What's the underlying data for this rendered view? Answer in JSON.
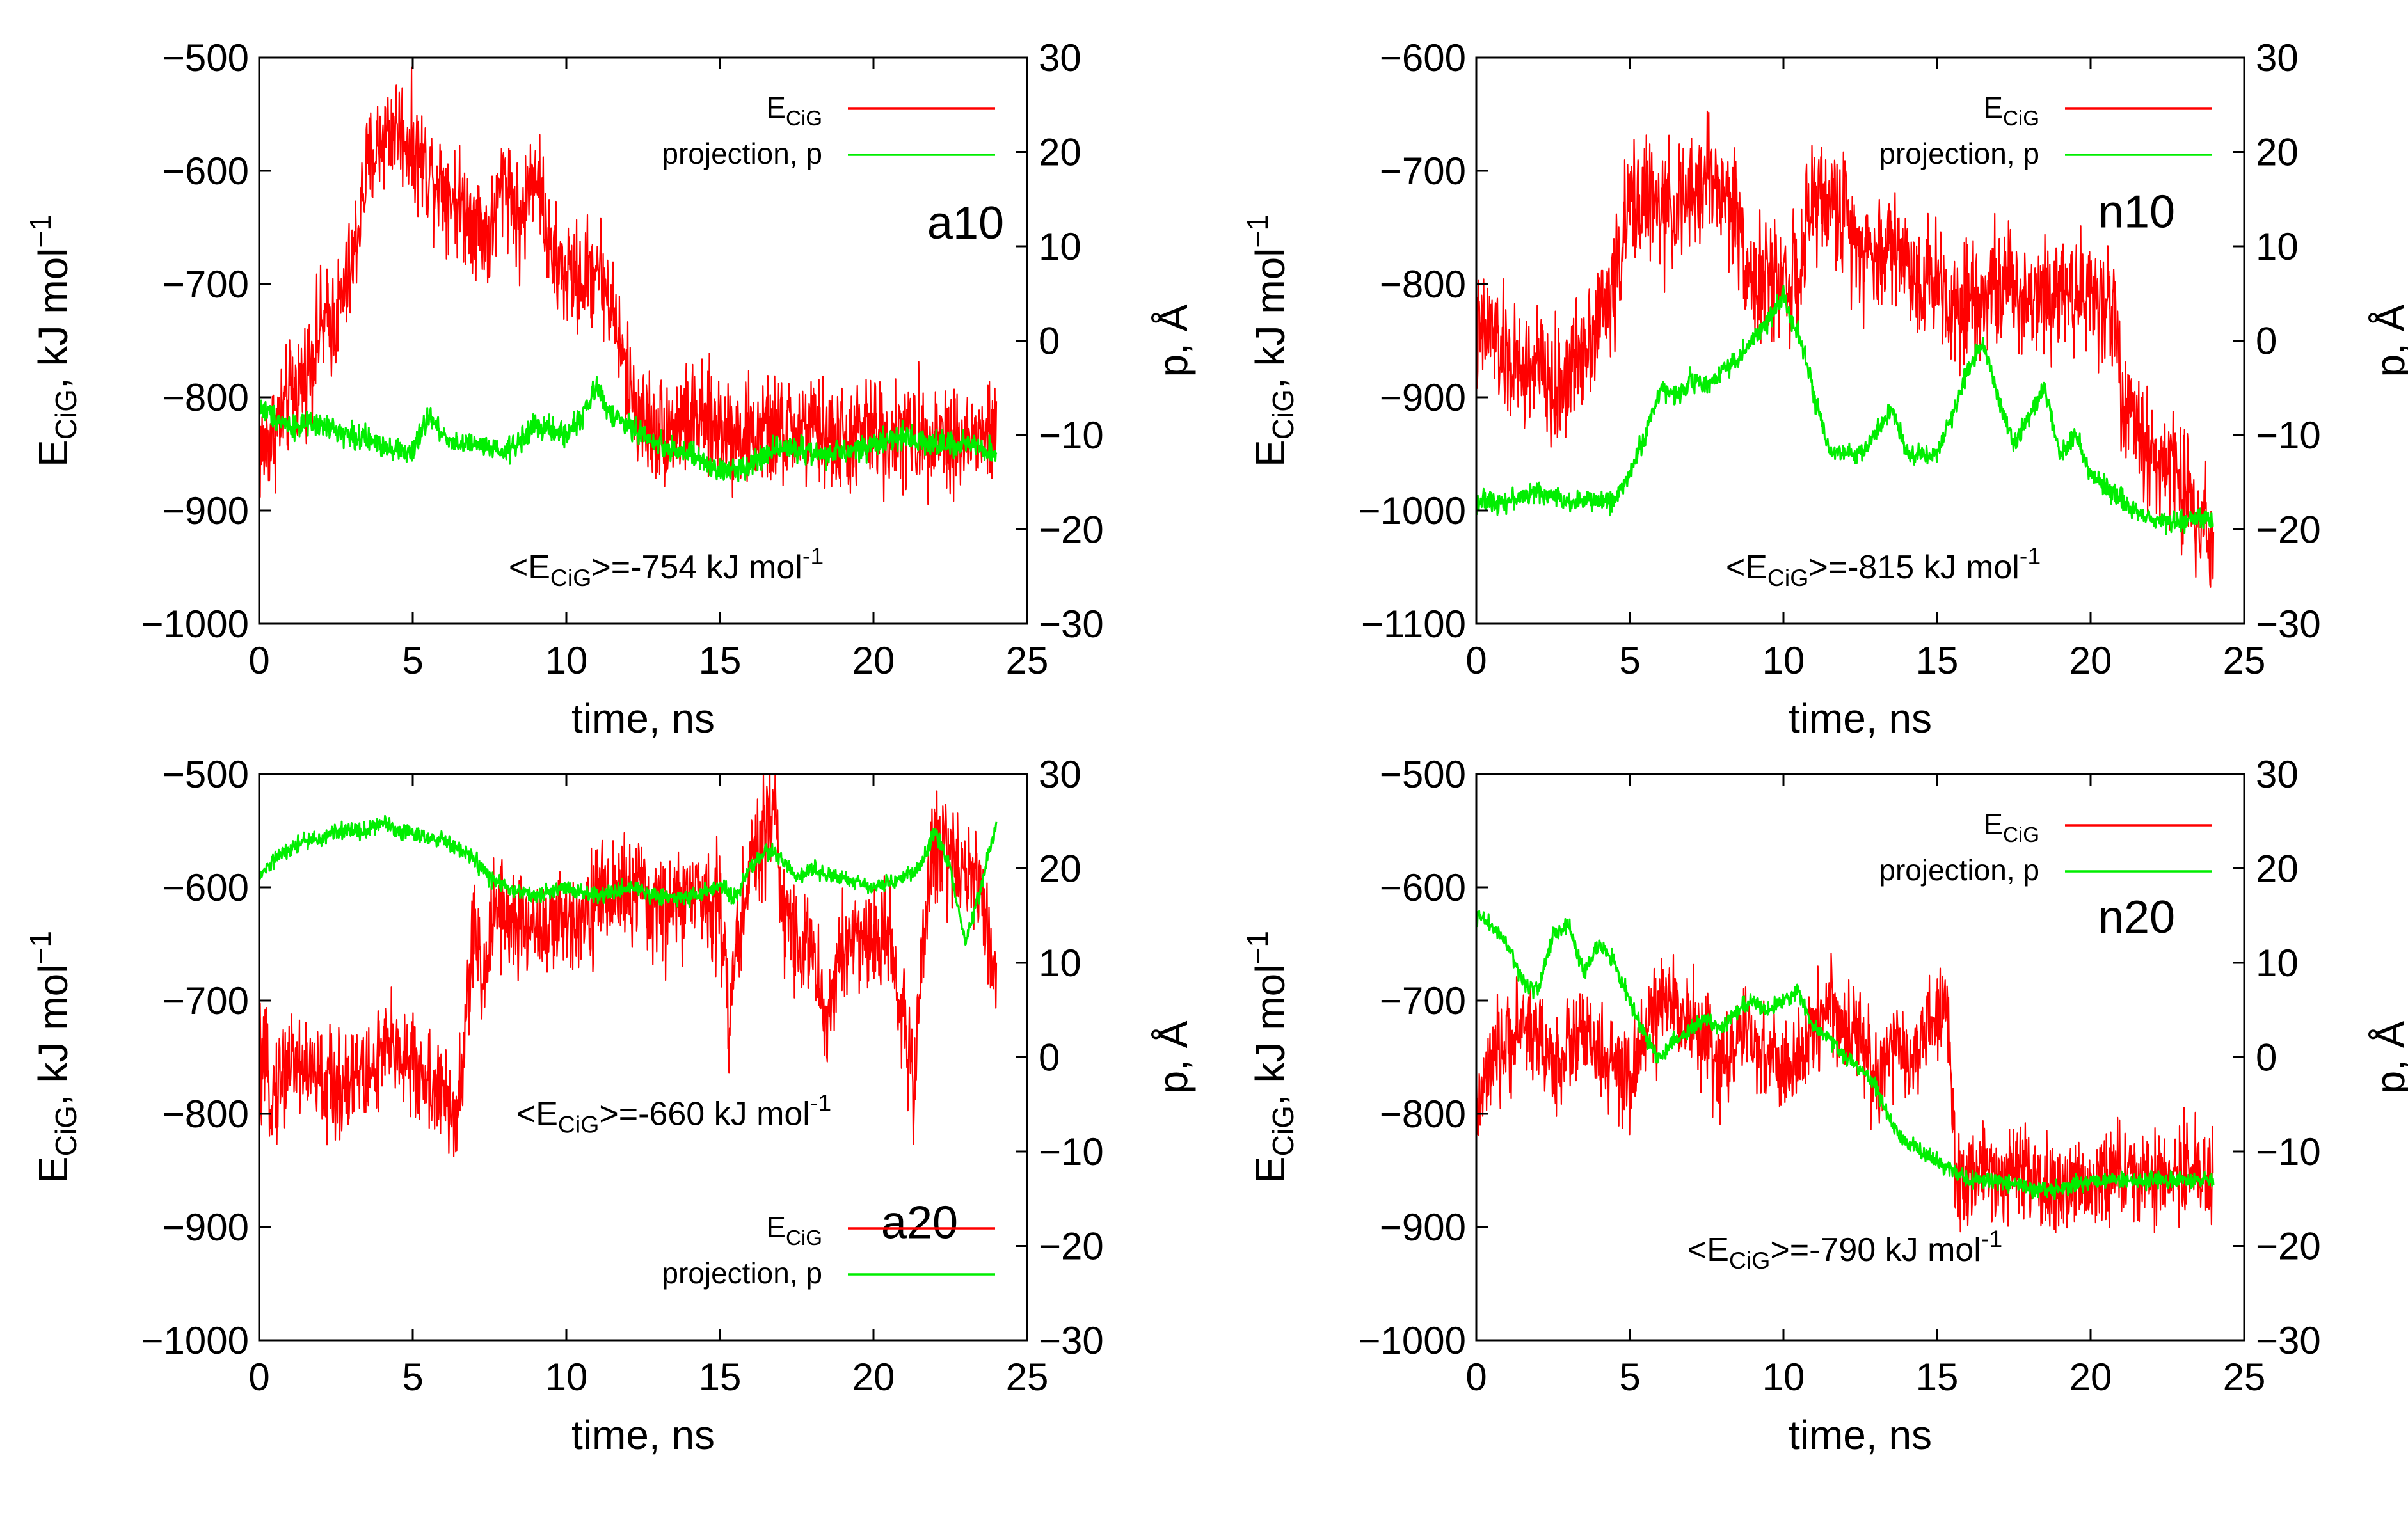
{
  "figure": {
    "description_free": true
  },
  "chart_data": [
    {
      "type": "line",
      "panel": "a10",
      "xlabel": "time, ns",
      "ylabel_left": [
        "E",
        "CiG",
        ", kJ mol",
        "−1"
      ],
      "ylabel_right": "p, Å",
      "xlim": [
        0,
        25
      ],
      "ylim_left": [
        -1000,
        -500
      ],
      "ylim_right": [
        -30,
        30
      ],
      "x_ticks": [
        0,
        5,
        10,
        15,
        20,
        25
      ],
      "y_ticks_left": [
        -1000,
        -900,
        -800,
        -700,
        -600,
        -500
      ],
      "y_ticks_right": [
        -30,
        -20,
        -10,
        0,
        10,
        20,
        30
      ],
      "annotation": [
        "<E",
        "CiG",
        ">=-754 kJ mol",
        "-1"
      ],
      "legend_position": "top-right",
      "series": [
        {
          "name": "E_CiG",
          "label_main": "E",
          "label_sub": "CiG",
          "axis": "left",
          "color": "#ff0000",
          "noise": 45,
          "x": [
            0,
            0.5,
            1,
            1.5,
            2,
            2.5,
            3,
            3.5,
            4,
            4.5,
            5,
            5.5,
            6,
            6.5,
            7,
            7.5,
            8,
            8.5,
            9,
            9.5,
            10,
            10.5,
            11,
            11.5,
            12,
            12.5,
            13,
            14,
            15,
            16,
            17,
            18,
            19,
            20,
            21,
            22,
            23,
            24
          ],
          "y": [
            -850,
            -830,
            -800,
            -780,
            -740,
            -730,
            -690,
            -600,
            -570,
            -560,
            -580,
            -600,
            -610,
            -630,
            -640,
            -660,
            -600,
            -650,
            -590,
            -680,
            -690,
            -700,
            -680,
            -720,
            -790,
            -820,
            -830,
            -820,
            -825,
            -835,
            -830,
            -830,
            -840,
            -830,
            -835,
            -830,
            -840,
            -830
          ]
        },
        {
          "name": "projection, p",
          "label_main": "projection, p",
          "label_sub": "",
          "axis": "right",
          "color": "#00ee00",
          "noise": 1.2,
          "x": [
            0,
            0.5,
            1,
            2,
            3,
            4,
            5,
            5.5,
            6,
            6.5,
            7,
            8,
            9,
            10,
            10.5,
            11,
            11.5,
            12,
            13,
            14,
            15,
            16,
            17,
            18,
            19,
            20,
            21,
            22,
            23,
            24
          ],
          "y": [
            -7,
            -8,
            -9,
            -9,
            -10,
            -11,
            -12,
            -8,
            -10,
            -11,
            -11,
            -12,
            -9,
            -10,
            -8,
            -5,
            -8,
            -9,
            -11,
            -12,
            -14,
            -13,
            -11,
            -12,
            -12,
            -11,
            -10,
            -11,
            -11,
            -12
          ]
        }
      ]
    },
    {
      "type": "line",
      "panel": "n10",
      "xlabel": "time, ns",
      "ylabel_left": [
        "E",
        "CiG",
        ", kJ mol",
        "−1"
      ],
      "ylabel_right": "p, Å",
      "xlim": [
        0,
        25
      ],
      "ylim_left": [
        -1100,
        -600
      ],
      "ylim_right": [
        -30,
        30
      ],
      "x_ticks": [
        0,
        5,
        10,
        15,
        20,
        25
      ],
      "y_ticks_left": [
        -1100,
        -1000,
        -900,
        -800,
        -700,
        -600
      ],
      "y_ticks_right": [
        -30,
        -20,
        -10,
        0,
        10,
        20,
        30
      ],
      "annotation": [
        "<E",
        "CiG",
        ">=-815 kJ mol",
        "-1"
      ],
      "legend_position": "top-right",
      "series": [
        {
          "name": "E_CiG",
          "label_main": "E",
          "label_sub": "CiG",
          "axis": "left",
          "color": "#ff0000",
          "noise": 50,
          "x": [
            0,
            0.5,
            1,
            1.5,
            2,
            2.5,
            3,
            3.5,
            4,
            4.5,
            5,
            5.5,
            6,
            6.5,
            7,
            7.5,
            8,
            8.5,
            9,
            9.5,
            10,
            10.5,
            11,
            11.5,
            12,
            12.5,
            13,
            13.5,
            14,
            14.5,
            15,
            15.5,
            16,
            17,
            18,
            19,
            20,
            20.8,
            21,
            21.5,
            22,
            22.5,
            23,
            23.5,
            24
          ],
          "y": [
            -850,
            -840,
            -870,
            -880,
            -870,
            -900,
            -880,
            -850,
            -830,
            -800,
            -730,
            -720,
            -740,
            -730,
            -730,
            -700,
            -720,
            -740,
            -800,
            -800,
            -790,
            -800,
            -720,
            -730,
            -740,
            -760,
            -780,
            -760,
            -780,
            -800,
            -790,
            -820,
            -810,
            -800,
            -810,
            -800,
            -810,
            -820,
            -900,
            -930,
            -950,
            -960,
            -980,
            -1000,
            -1020
          ]
        },
        {
          "name": "projection, p",
          "label_main": "projection, p",
          "label_sub": "",
          "axis": "right",
          "color": "#00ee00",
          "noise": 1,
          "x": [
            0,
            1,
            2,
            3,
            4,
            4.5,
            5,
            5.5,
            6,
            6.5,
            7,
            7.5,
            8,
            8.5,
            9,
            9.5,
            10,
            10.3,
            10.6,
            11,
            11.5,
            12,
            12.5,
            13,
            13.5,
            14,
            14.5,
            15,
            15.5,
            16,
            16.5,
            17,
            17.5,
            18,
            18.5,
            19,
            19.5,
            20,
            21,
            22,
            23,
            24
          ],
          "y": [
            -17,
            -17,
            -16,
            -17,
            -17,
            -17,
            -14,
            -10,
            -5,
            -6,
            -4,
            -5,
            -3,
            -2,
            0,
            2,
            5,
            2,
            0,
            -6,
            -12,
            -12,
            -12,
            -10,
            -7,
            -12,
            -12,
            -12,
            -8,
            -3,
            0,
            -6,
            -11,
            -8,
            -5,
            -12,
            -10,
            -14,
            -17,
            -19,
            -19,
            -19
          ]
        }
      ]
    },
    {
      "type": "line",
      "panel": "a20",
      "xlabel": "time, ns",
      "ylabel_left": [
        "E",
        "CiG",
        ", kJ mol",
        "−1"
      ],
      "ylabel_right": "p, Å",
      "xlim": [
        0,
        25
      ],
      "ylim_left": [
        -1000,
        -500
      ],
      "ylim_right": [
        -30,
        30
      ],
      "x_ticks": [
        0,
        5,
        10,
        15,
        20,
        25
      ],
      "y_ticks_left": [
        -1000,
        -900,
        -800,
        -700,
        -600,
        -500
      ],
      "y_ticks_right": [
        -30,
        -20,
        -10,
        0,
        10,
        20,
        30
      ],
      "annotation": [
        "<E",
        "CiG",
        ">=-660 kJ mol",
        "-1"
      ],
      "legend_position": "bottom-right",
      "series": [
        {
          "name": "E_CiG",
          "label_main": "E",
          "label_sub": "CiG",
          "axis": "left",
          "color": "#ff0000",
          "noise": 45,
          "x": [
            0,
            0.5,
            1,
            1.5,
            2,
            2.5,
            3,
            3.5,
            4,
            4.5,
            5,
            5.5,
            6,
            6.5,
            7,
            7.3,
            7.6,
            8,
            8.5,
            9,
            9.5,
            10,
            11,
            12,
            13,
            14,
            15,
            15.3,
            15.6,
            16,
            16.5,
            16.8,
            17,
            17.5,
            18,
            18.5,
            19,
            19.5,
            20,
            20.5,
            21,
            21.3,
            21.6,
            22,
            22.5,
            23,
            23.5,
            24
          ],
          "y": [
            -760,
            -780,
            -750,
            -760,
            -770,
            -780,
            -760,
            -770,
            -750,
            -740,
            -760,
            -770,
            -790,
            -800,
            -630,
            -700,
            -610,
            -620,
            -640,
            -630,
            -640,
            -630,
            -610,
            -600,
            -620,
            -610,
            -610,
            -720,
            -640,
            -580,
            -560,
            -510,
            -620,
            -640,
            -660,
            -720,
            -650,
            -640,
            -650,
            -640,
            -720,
            -780,
            -650,
            -560,
            -570,
            -580,
            -600,
            -690
          ]
        },
        {
          "name": "projection, p",
          "label_main": "projection, p",
          "label_sub": "",
          "axis": "right",
          "color": "#00ee00",
          "noise": 0.8,
          "x": [
            0,
            0.5,
            1,
            1.5,
            2,
            2.5,
            3,
            3.5,
            4,
            4.5,
            5,
            5.5,
            6,
            6.5,
            7,
            7.5,
            8,
            9,
            10,
            11,
            12,
            13,
            14,
            15,
            15.5,
            16,
            16.5,
            17,
            17.5,
            18,
            19,
            20,
            21,
            21.5,
            22,
            22.5,
            23,
            23.5,
            24
          ],
          "y": [
            19,
            21,
            22,
            23,
            23,
            24,
            24,
            24,
            25,
            24,
            24,
            23,
            23,
            22,
            21,
            19,
            18,
            17,
            18,
            17,
            18,
            17,
            17,
            18,
            17,
            20,
            22,
            21,
            19,
            20,
            19,
            18,
            19,
            20,
            24,
            20,
            12,
            18,
            25
          ]
        }
      ]
    },
    {
      "type": "line",
      "panel": "n20",
      "xlabel": "time, ns",
      "ylabel_left": [
        "E",
        "CiG",
        ", kJ mol",
        "−1"
      ],
      "ylabel_right": "p, Å",
      "xlim": [
        0,
        25
      ],
      "ylim_left": [
        -1000,
        -500
      ],
      "ylim_right": [
        -30,
        30
      ],
      "x_ticks": [
        0,
        5,
        10,
        15,
        20,
        25
      ],
      "y_ticks_left": [
        -1000,
        -900,
        -800,
        -700,
        -600,
        -500
      ],
      "y_ticks_right": [
        -30,
        -20,
        -10,
        0,
        10,
        20,
        30
      ],
      "annotation": [
        "<E",
        "CiG",
        ">=-790 kJ mol",
        "-1"
      ],
      "legend_position": "top-right",
      "series": [
        {
          "name": "E_CiG",
          "label_main": "E",
          "label_sub": "CiG",
          "axis": "left",
          "color": "#ff0000",
          "noise": 40,
          "x": [
            0,
            0.5,
            1,
            1.5,
            2,
            2.5,
            3,
            3.5,
            4,
            4.5,
            5,
            5.5,
            6,
            6.5,
            7,
            7.5,
            8,
            8.5,
            9,
            9.5,
            10,
            10.5,
            11,
            11.5,
            12,
            12.5,
            13,
            13.5,
            14,
            14.5,
            15,
            15.3,
            15.6,
            16,
            17,
            18,
            19,
            20,
            21,
            22,
            23,
            24
          ],
          "y": [
            -800,
            -760,
            -740,
            -720,
            -730,
            -760,
            -740,
            -730,
            -750,
            -760,
            -780,
            -720,
            -710,
            -700,
            -720,
            -740,
            -760,
            -730,
            -740,
            -750,
            -760,
            -760,
            -720,
            -700,
            -730,
            -720,
            -780,
            -740,
            -760,
            -730,
            -720,
            -700,
            -850,
            -860,
            -850,
            -860,
            -870,
            -860,
            -850,
            -860,
            -850,
            -850
          ]
        },
        {
          "name": "projection, p",
          "label_main": "projection, p",
          "label_sub": "",
          "axis": "right",
          "color": "#00ee00",
          "noise": 0.8,
          "x": [
            0,
            0.5,
            1,
            1.5,
            2,
            2.5,
            3,
            3.5,
            4,
            4.5,
            5,
            5.5,
            6,
            6.5,
            7,
            7.5,
            8,
            8.5,
            9,
            9.5,
            10,
            10.5,
            11,
            11.5,
            12,
            12.5,
            13,
            13.5,
            14,
            14.5,
            15,
            15.5,
            16,
            17,
            18,
            19,
            20,
            21,
            22,
            23,
            24
          ],
          "y": [
            15,
            14,
            12,
            8,
            7,
            13,
            14,
            9,
            12,
            10,
            6,
            2,
            0,
            2,
            3,
            4,
            3,
            5,
            6,
            5,
            6,
            7,
            3,
            2,
            0,
            -1,
            -3,
            -7,
            -9,
            -10,
            -11,
            -12,
            -13,
            -13,
            -14,
            -14,
            -13,
            -13,
            -13,
            -13,
            -13
          ]
        }
      ]
    }
  ]
}
